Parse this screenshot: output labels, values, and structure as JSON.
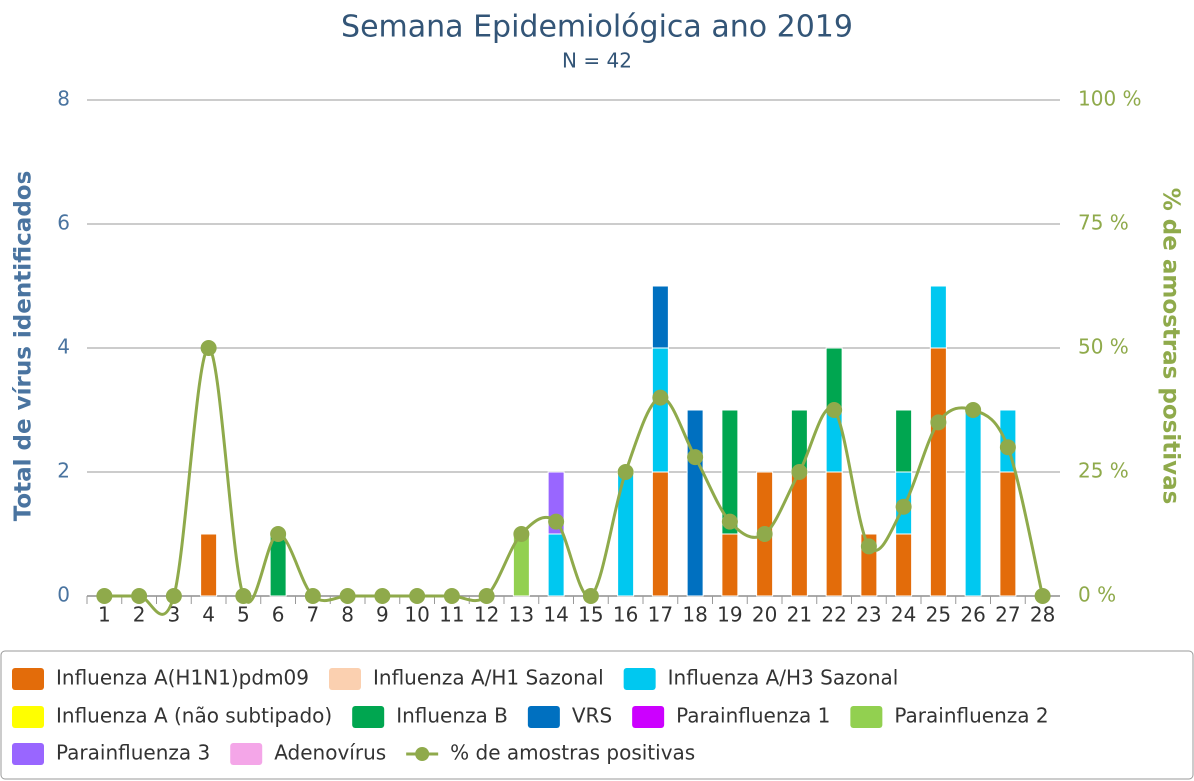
{
  "chart_data": {
    "type": "bar",
    "stacked": true,
    "title": "Semana Epidemiológica ano 2019",
    "subtitle": "N = 42",
    "y_label": "Total de vírus identificados",
    "y2_label": "% de amostras positivas",
    "categories": [
      "1",
      "2",
      "3",
      "4",
      "5",
      "6",
      "7",
      "8",
      "9",
      "10",
      "11",
      "12",
      "13",
      "14",
      "15",
      "16",
      "17",
      "18",
      "19",
      "20",
      "21",
      "22",
      "23",
      "24",
      "25",
      "26",
      "27",
      "28"
    ],
    "series": [
      {
        "name": "Influenza A(H1N1)pdm09",
        "color": "#e36c0a",
        "values": [
          0,
          0,
          0,
          1,
          0,
          0,
          0,
          0,
          0,
          0,
          0,
          0,
          0,
          0,
          0,
          0,
          2,
          0,
          1,
          2,
          2,
          2,
          1,
          1,
          4,
          0,
          2,
          0
        ]
      },
      {
        "name": "Influenza A/H1 Sazonal",
        "color": "#fbd0b0",
        "values": [
          0,
          0,
          0,
          0,
          0,
          0,
          0,
          0,
          0,
          0,
          0,
          0,
          0,
          0,
          0,
          0,
          0,
          0,
          0,
          0,
          0,
          0,
          0,
          0,
          0,
          0,
          0,
          0
        ]
      },
      {
        "name": "Influenza A/H3 Sazonal",
        "color": "#00c8f0",
        "values": [
          0,
          0,
          0,
          0,
          0,
          0,
          0,
          0,
          0,
          0,
          0,
          0,
          0,
          1,
          0,
          2,
          2,
          0,
          0,
          0,
          0,
          1,
          0,
          1,
          1,
          3,
          1,
          0
        ]
      },
      {
        "name": "Influenza A (não subtipado)",
        "color": "#ffff00",
        "values": [
          0,
          0,
          0,
          0,
          0,
          0,
          0,
          0,
          0,
          0,
          0,
          0,
          0,
          0,
          0,
          0,
          0,
          0,
          0,
          0,
          0,
          0,
          0,
          0,
          0,
          0,
          0,
          0
        ]
      },
      {
        "name": "Influenza B",
        "color": "#00a650",
        "values": [
          0,
          0,
          0,
          0,
          0,
          1,
          0,
          0,
          0,
          0,
          0,
          0,
          0,
          0,
          0,
          0,
          0,
          0,
          2,
          0,
          1,
          1,
          0,
          1,
          0,
          0,
          0,
          0
        ]
      },
      {
        "name": "VRS",
        "color": "#0070c0",
        "values": [
          0,
          0,
          0,
          0,
          0,
          0,
          0,
          0,
          0,
          0,
          0,
          0,
          0,
          0,
          0,
          0,
          1,
          3,
          0,
          0,
          0,
          0,
          0,
          0,
          0,
          0,
          0,
          0
        ]
      },
      {
        "name": "Parainfluenza 1",
        "color": "#cc00ff",
        "values": [
          0,
          0,
          0,
          0,
          0,
          0,
          0,
          0,
          0,
          0,
          0,
          0,
          0,
          0,
          0,
          0,
          0,
          0,
          0,
          0,
          0,
          0,
          0,
          0,
          0,
          0,
          0,
          0
        ]
      },
      {
        "name": "Parainfluenza 2",
        "color": "#92d050",
        "values": [
          0,
          0,
          0,
          0,
          0,
          0,
          0,
          0,
          0,
          0,
          0,
          0,
          1,
          0,
          0,
          0,
          0,
          0,
          0,
          0,
          0,
          0,
          0,
          0,
          0,
          0,
          0,
          0
        ]
      },
      {
        "name": "Parainfluenza 3",
        "color": "#9966ff",
        "values": [
          0,
          0,
          0,
          0,
          0,
          0,
          0,
          0,
          0,
          0,
          0,
          0,
          0,
          1,
          0,
          0,
          0,
          0,
          0,
          0,
          0,
          0,
          0,
          0,
          0,
          0,
          0,
          0
        ]
      },
      {
        "name": "Adenovírus",
        "color": "#f4a6e8",
        "values": [
          0,
          0,
          0,
          0,
          0,
          0,
          0,
          0,
          0,
          0,
          0,
          0,
          0,
          0,
          0,
          0,
          0,
          0,
          0,
          0,
          0,
          0,
          0,
          0,
          0,
          0,
          0,
          0
        ]
      },
      {
        "name": "% de amostras positivas",
        "color": "#8faa4b",
        "type": "line",
        "axis": "y2",
        "values": [
          0,
          0,
          0,
          50,
          0,
          12.5,
          0,
          0,
          0,
          0,
          0,
          0,
          12.5,
          15,
          0,
          25,
          40,
          28,
          15,
          12.5,
          25,
          37.5,
          10,
          18,
          35,
          37.5,
          30,
          0
        ]
      }
    ],
    "ylim": [
      0,
      8
    ],
    "yticks": [
      0,
      2,
      4,
      6,
      8
    ],
    "y2lim": [
      0,
      100
    ],
    "y2ticks": [
      {
        "value": 0,
        "label": "0 %"
      },
      {
        "value": 25,
        "label": "25 %"
      },
      {
        "value": 50,
        "label": "50 %"
      },
      {
        "value": 75,
        "label": "75 %"
      },
      {
        "value": 100,
        "label": "100 %"
      }
    ],
    "grid": true,
    "legend": "bottom"
  }
}
